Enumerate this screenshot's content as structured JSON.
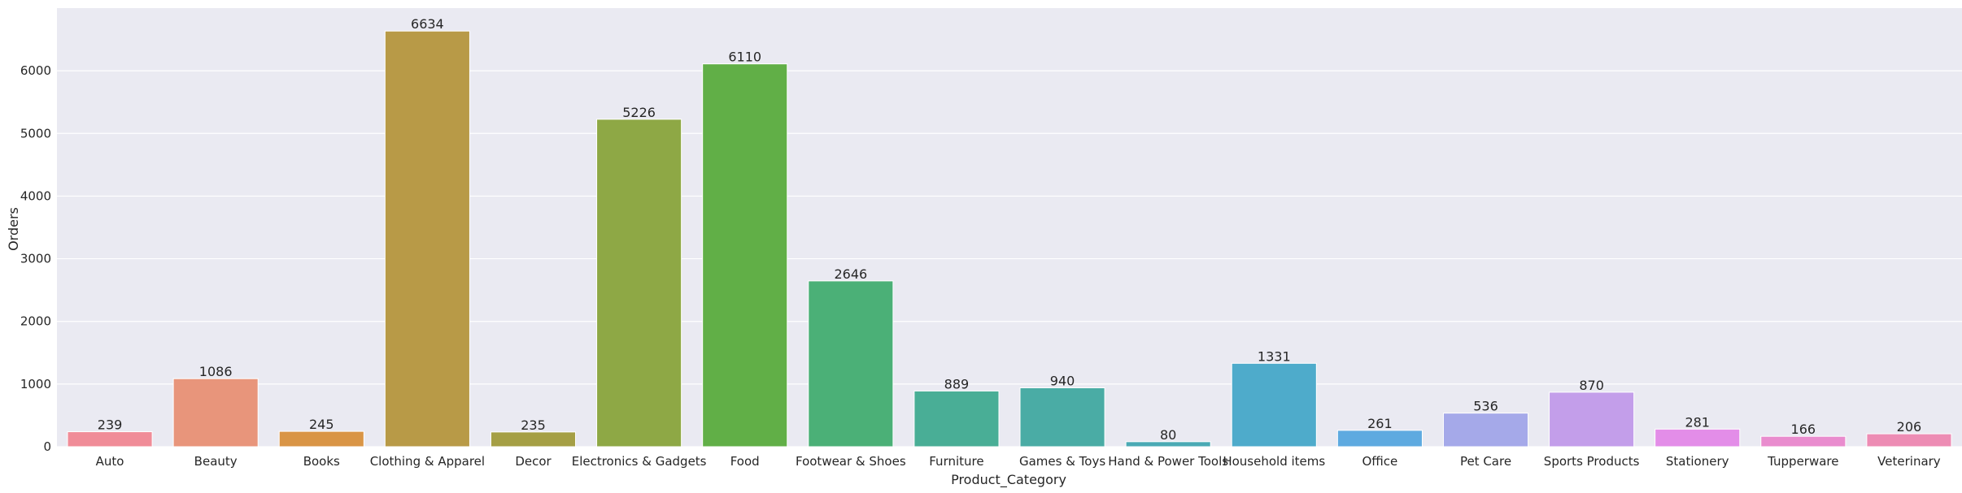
{
  "chart_data": {
    "type": "bar",
    "title": "",
    "xlabel": "Product_Category",
    "ylabel": "Orders",
    "ylim": [
      0,
      7000
    ],
    "yticks": [
      0,
      1000,
      2000,
      3000,
      4000,
      5000,
      6000
    ],
    "grid": true,
    "background": "#eaeaf2",
    "categories": [
      "Auto",
      "Beauty",
      "Books",
      "Clothing & Apparel",
      "Decor",
      "Electronics & Gadgets",
      "Food",
      "Footwear & Shoes",
      "Furniture",
      "Games & Toys",
      "Hand & Power Tools",
      "Household items",
      "Office",
      "Pet Care",
      "Sports Products",
      "Stationery",
      "Tupperware",
      "Veterinary"
    ],
    "values": [
      239,
      1086,
      245,
      6634,
      235,
      5226,
      6110,
      2646,
      889,
      940,
      80,
      1331,
      261,
      536,
      870,
      281,
      166,
      206
    ],
    "colors": [
      "#f08c98",
      "#e8957b",
      "#d99546",
      "#b89a47",
      "#a59f45",
      "#8ea845",
      "#61af47",
      "#4bb077",
      "#49ae96",
      "#4aaca5",
      "#4aaab4",
      "#4eabcb",
      "#5eaae0",
      "#a5a9e9",
      "#c39eea",
      "#e38de8",
      "#e98cce",
      "#ed8cb4"
    ]
  }
}
